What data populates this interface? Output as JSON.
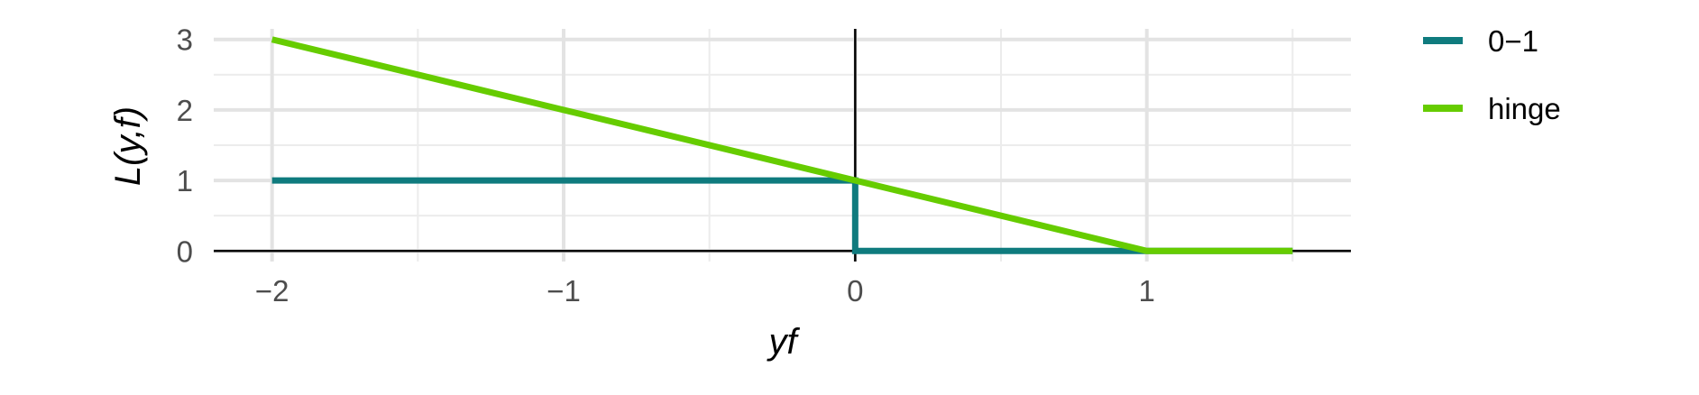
{
  "chart_data": {
    "type": "line",
    "xlabel": "yf",
    "ylabel": "L(y,f)",
    "xlim": [
      -2.2,
      1.7
    ],
    "ylim": [
      -0.15,
      3.15
    ],
    "x_ticks": [
      -2,
      -1,
      0,
      1
    ],
    "x_tick_labels": [
      "−2",
      "−1",
      "0",
      "1"
    ],
    "y_ticks": [
      0,
      1,
      2,
      3
    ],
    "y_tick_labels": [
      "0",
      "1",
      "2",
      "3"
    ],
    "grid": true,
    "legend_position": "right",
    "reference_lines": {
      "x": 0,
      "y": 0
    },
    "series": [
      {
        "name": "0−1",
        "color": "#0f7b7e",
        "points": [
          [
            -2,
            1
          ],
          [
            0,
            1
          ],
          [
            0,
            0
          ],
          [
            1.5,
            0
          ]
        ]
      },
      {
        "name": "hinge",
        "color": "#66cc00",
        "points": [
          [
            -2,
            3
          ],
          [
            1,
            0
          ],
          [
            1.5,
            0
          ]
        ]
      }
    ]
  }
}
